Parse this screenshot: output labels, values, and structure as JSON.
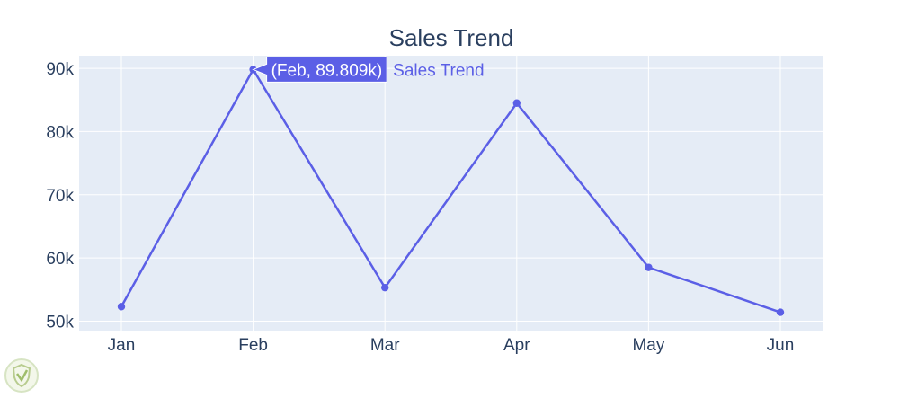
{
  "chart_data": {
    "type": "line",
    "title": "Sales Trend",
    "categories": [
      "Jan",
      "Feb",
      "Mar",
      "Apr",
      "May",
      "Jun"
    ],
    "series": [
      {
        "name": "Sales Trend",
        "values": [
          52300,
          89809,
          55300,
          84500,
          58500,
          51400
        ]
      }
    ],
    "ylim": [
      48500,
      92000
    ],
    "yticks": [
      50000,
      60000,
      70000,
      80000,
      90000
    ],
    "ytick_labels": [
      "50k",
      "60k",
      "70k",
      "80k",
      "90k"
    ],
    "grid": true,
    "legend": "none",
    "hover": {
      "category_index": 1,
      "label": "(Feb, 89.809k)",
      "series_label": "Sales Trend"
    },
    "colors": {
      "line": "#5b5fe6",
      "plot_bg": "#e5ecf6",
      "grid": "#ffffff",
      "text": "#2a3f5f",
      "hover_text": "#ffffff"
    }
  },
  "watermark": {
    "icon": "shield-logo-icon"
  }
}
